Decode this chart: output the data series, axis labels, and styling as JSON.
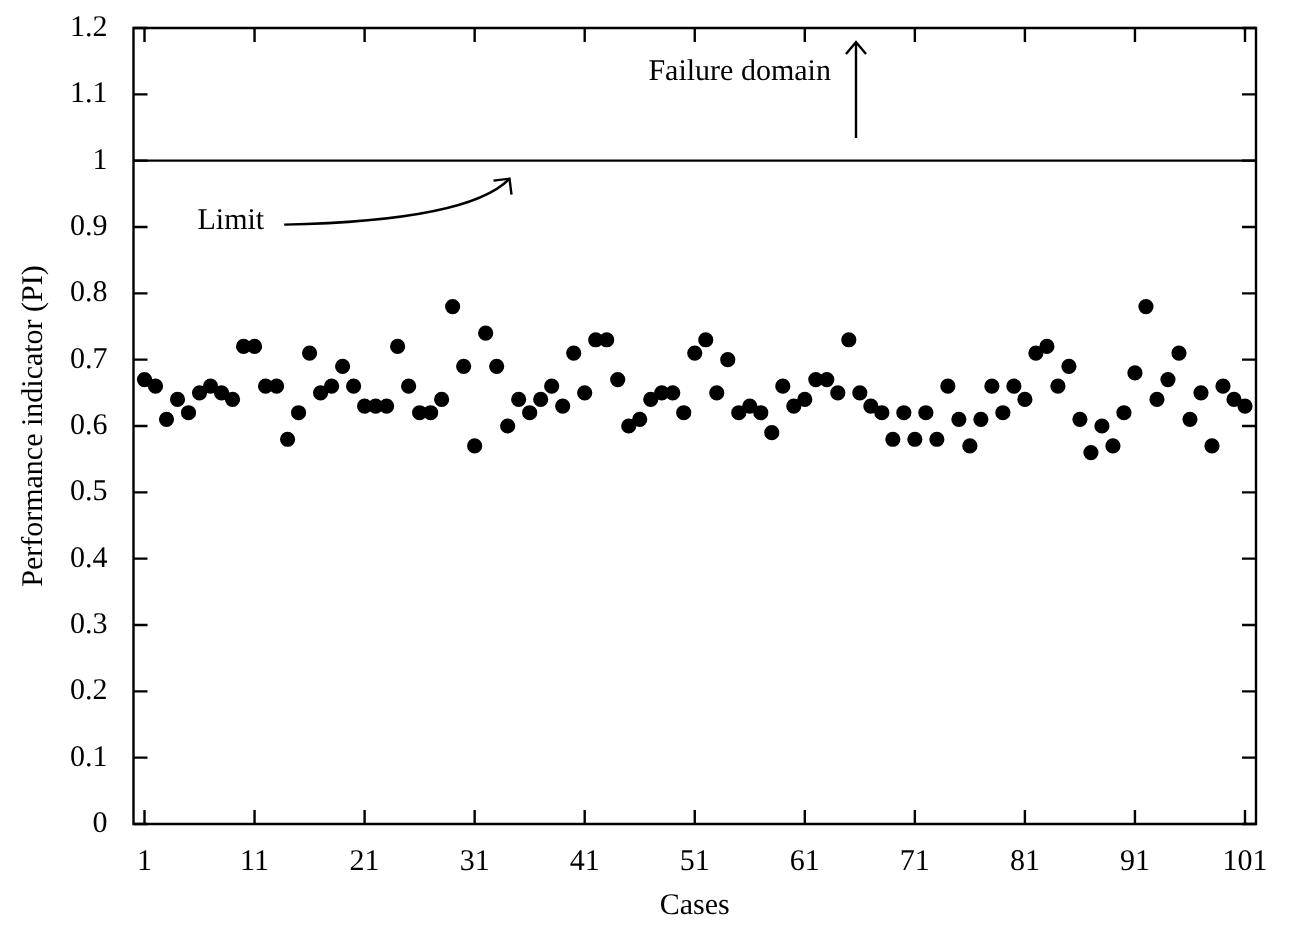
{
  "chart_data": {
    "type": "scatter",
    "xlabel": "Cases",
    "ylabel": "Performance indicator (PI)",
    "x": [
      1,
      2,
      3,
      4,
      5,
      6,
      7,
      8,
      9,
      10,
      11,
      12,
      13,
      14,
      15,
      16,
      17,
      18,
      19,
      20,
      21,
      22,
      23,
      24,
      25,
      26,
      27,
      28,
      29,
      30,
      31,
      32,
      33,
      34,
      35,
      36,
      37,
      38,
      39,
      40,
      41,
      42,
      43,
      44,
      45,
      46,
      47,
      48,
      49,
      50,
      51,
      52,
      53,
      54,
      55,
      56,
      57,
      58,
      59,
      60,
      61,
      62,
      63,
      64,
      65,
      66,
      67,
      68,
      69,
      70,
      71,
      72,
      73,
      74,
      75,
      76,
      77,
      78,
      79,
      80,
      81,
      82,
      83,
      84,
      85,
      86,
      87,
      88,
      89,
      90,
      91,
      92,
      93,
      94,
      95,
      96,
      97,
      98,
      99,
      100,
      101
    ],
    "series": [
      {
        "color": "#000000",
        "values": [
          0.67,
          0.66,
          0.61,
          0.64,
          0.62,
          0.65,
          0.66,
          0.65,
          0.64,
          0.72,
          0.72,
          0.66,
          0.66,
          0.58,
          0.62,
          0.71,
          0.65,
          0.66,
          0.69,
          0.66,
          0.63,
          0.63,
          0.63,
          0.72,
          0.66,
          0.62,
          0.62,
          0.64,
          0.78,
          0.69,
          0.57,
          0.74,
          0.69,
          0.6,
          0.64,
          0.62,
          0.64,
          0.66,
          0.63,
          0.71,
          0.65,
          0.73,
          0.73,
          0.67,
          0.6,
          0.61,
          0.64,
          0.65,
          0.65,
          0.62,
          0.71,
          0.73,
          0.65,
          0.7,
          0.62,
          0.63,
          0.62,
          0.59,
          0.66,
          0.63,
          0.64,
          0.67,
          0.67,
          0.65,
          0.73,
          0.65,
          0.63,
          0.62,
          0.58,
          0.62,
          0.58,
          0.62,
          0.58,
          0.66,
          0.61,
          0.57,
          0.61,
          0.66,
          0.62,
          0.66,
          0.64,
          0.71,
          0.72,
          0.66,
          0.69,
          0.61,
          0.56,
          0.6,
          0.57,
          0.62,
          0.68,
          0.78,
          0.64,
          0.67,
          0.71,
          0.61,
          0.65,
          0.57,
          0.66,
          0.64,
          0.63
        ]
      }
    ],
    "xlim": [
      0,
      102
    ],
    "xticks": [
      1,
      11,
      21,
      31,
      41,
      51,
      61,
      71,
      81,
      91,
      101
    ],
    "ylim": [
      0,
      1.2
    ],
    "yticks": [
      0,
      0.1,
      0.2,
      0.3,
      0.4,
      0.5,
      0.6,
      0.7,
      0.8,
      0.9,
      1,
      1.1,
      1.2
    ],
    "ref_lines": [
      {
        "axis": "y",
        "value": 1,
        "label": "Limit"
      }
    ],
    "annotations": [
      "Failure domain"
    ],
    "marker": "circle",
    "grid": false,
    "legend": false
  }
}
